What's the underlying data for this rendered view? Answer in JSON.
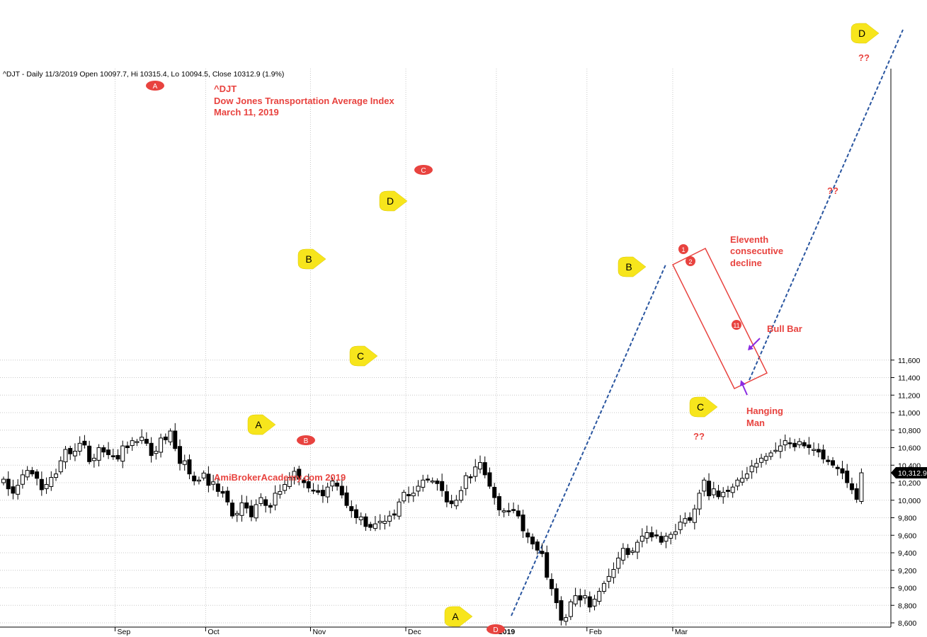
{
  "header": "^DJT - Daily 11/3/2019 Open 10097.7, Hi 10315.4, Lo 10094.5, Close 10312.9 (1.9%)",
  "title": {
    "line1": "^DJT",
    "line2": "Dow Jones Transportation Average Index",
    "line3": "March 11, 2019"
  },
  "watermark": "AmiBrokerAcademy.com   2019",
  "annotations": {
    "eleventh_1": "Eleventh",
    "eleventh_2": "consecutive",
    "eleventh_3": "decline",
    "bull_bar": "Bull Bar",
    "hanging_1": "Hanging",
    "hanging_2": "Man",
    "qq_c": "??",
    "qq_mid": "??",
    "qq_d": "??"
  },
  "colors": {
    "label_red": "#e8433f",
    "marker_yellow": "#f7e51c",
    "trend_blue": "#2a56a0",
    "arrow_purple": "#8a2be2",
    "grid": "#c8c8c8"
  },
  "chart_data": {
    "type": "candlestick",
    "ylim": [
      8600,
      11800
    ],
    "yticks": [
      8600,
      8800,
      9000,
      9200,
      9400,
      9600,
      9800,
      10000,
      10200,
      10400,
      10600,
      10800,
      11000,
      11200,
      11400,
      11600
    ],
    "ytick_labels": [
      "8,600",
      "8,800",
      "9,000",
      "9,200",
      "9,400",
      "9,600",
      "9,800",
      "10,000",
      "10,200",
      "10,400",
      "10,600",
      "10,800",
      "11,000",
      "11,200",
      "11,400",
      "11,600"
    ],
    "month_labels": [
      "Sep",
      "Oct",
      "Nov",
      "Dec",
      "2019",
      "Feb",
      "Mar"
    ],
    "month_start_index": [
      24,
      43,
      65,
      85,
      104,
      123,
      141
    ],
    "last_price_label": "10,312.9",
    "last_price": 10312.9,
    "closes": [
      10240,
      10130,
      10080,
      10170,
      10290,
      10340,
      10300,
      10250,
      10120,
      10180,
      10260,
      10300,
      10450,
      10580,
      10530,
      10560,
      10650,
      10630,
      10440,
      10480,
      10600,
      10550,
      10520,
      10500,
      10470,
      10620,
      10600,
      10680,
      10670,
      10720,
      10650,
      10510,
      10560,
      10710,
      10690,
      10790,
      10590,
      10420,
      10450,
      10300,
      10220,
      10230,
      10310,
      10170,
      10210,
      10100,
      10080,
      9980,
      9820,
      9850,
      9970,
      9910,
      9810,
      9950,
      10030,
      9940,
      9920,
      10080,
      10100,
      10180,
      10260,
      10330,
      10240,
      10200,
      10140,
      10110,
      10090,
      10050,
      10150,
      10220,
      10160,
      10060,
      9940,
      9880,
      9800,
      9810,
      9700,
      9690,
      9730,
      9760,
      9760,
      9820,
      9830,
      9980,
      10090,
      10050,
      10080,
      10160,
      10230,
      10240,
      10220,
      10190,
      10110,
      9980,
      9960,
      10000,
      10110,
      10280,
      10260,
      10380,
      10430,
      10290,
      10160,
      10030,
      9890,
      9880,
      9870,
      9890,
      9820,
      9650,
      9580,
      9500,
      9430,
      9390,
      9120,
      8990,
      8830,
      8630,
      8660,
      8840,
      8910,
      8860,
      8910,
      8780,
      8870,
      8960,
      9050,
      9130,
      9210,
      9340,
      9450,
      9380,
      9420,
      9520,
      9590,
      9630,
      9580,
      9600,
      9520,
      9590,
      9610,
      9640,
      9750,
      9790,
      9770,
      9900,
      10080,
      10230,
      10050,
      10130,
      10040,
      10090,
      10100,
      10150,
      10230,
      10250,
      10300,
      10390,
      10420,
      10480,
      10500,
      10540,
      10570,
      10620,
      10680,
      10650,
      10610,
      10670,
      10620,
      10600,
      10580,
      10550,
      10470,
      10440,
      10400,
      10360,
      10310,
      10200,
      10120,
      10010,
      10312.9
    ]
  }
}
